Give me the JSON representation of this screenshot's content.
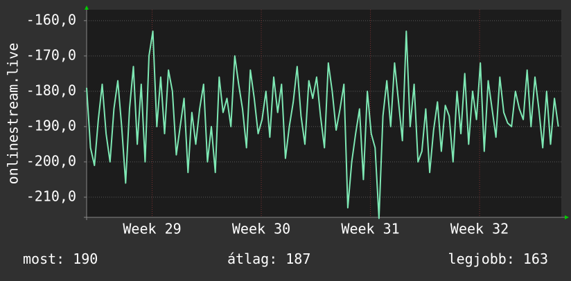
{
  "chart_data": {
    "type": "line",
    "y_label": "onlinestream.live",
    "color": "#7ee8b4",
    "xlim": [
      0,
      30.44
    ],
    "ylim": [
      -215.7,
      -156.9
    ],
    "yticks": [
      {
        "value": -160,
        "label": "-160,0"
      },
      {
        "value": -170,
        "label": "-170,0"
      },
      {
        "value": -180,
        "label": "-180,0"
      },
      {
        "value": -190,
        "label": "-190,0"
      },
      {
        "value": -200,
        "label": "-200,0"
      },
      {
        "value": -210,
        "label": "-210,0"
      }
    ],
    "xticks": [
      {
        "value": 4.2,
        "label": "Week 29"
      },
      {
        "value": 11.2,
        "label": "Week 30"
      },
      {
        "value": 18.2,
        "label": "Week 31"
      },
      {
        "value": 25.2,
        "label": "Week 32"
      }
    ],
    "grid": true,
    "x": [
      0,
      0.25,
      0.5,
      0.75,
      1,
      1.25,
      1.5,
      1.75,
      2,
      2.25,
      2.5,
      2.75,
      3,
      3.25,
      3.5,
      3.75,
      4,
      4.25,
      4.5,
      4.75,
      5,
      5.25,
      5.5,
      5.75,
      6,
      6.25,
      6.5,
      6.75,
      7,
      7.25,
      7.5,
      7.75,
      8,
      8.25,
      8.5,
      8.75,
      9,
      9.25,
      9.5,
      9.75,
      10,
      10.25,
      10.5,
      10.75,
      11,
      11.25,
      11.5,
      11.75,
      12,
      12.25,
      12.5,
      12.75,
      13,
      13.25,
      13.5,
      13.75,
      14,
      14.25,
      14.5,
      14.75,
      15,
      15.25,
      15.5,
      15.75,
      16,
      16.25,
      16.5,
      16.75,
      17,
      17.25,
      17.5,
      17.75,
      18,
      18.25,
      18.5,
      18.75,
      19,
      19.25,
      19.5,
      19.75,
      20,
      20.25,
      20.5,
      20.75,
      21,
      21.25,
      21.5,
      21.75,
      22,
      22.25,
      22.5,
      22.75,
      23,
      23.25,
      23.5,
      23.75,
      24,
      24.25,
      24.5,
      24.75,
      25,
      25.25,
      25.5,
      25.75,
      26,
      26.25,
      26.5,
      26.75,
      27,
      27.25,
      27.5,
      27.75,
      28,
      28.25,
      28.5,
      28.75,
      29,
      29.25,
      29.5,
      29.75,
      30,
      30.25
    ],
    "values": [
      -179,
      -196,
      -201,
      -188,
      -178,
      -192,
      -200,
      -185,
      -177,
      -190,
      -206,
      -185,
      -173,
      -195,
      -178,
      -200,
      -170,
      -163,
      -190,
      -176,
      -192,
      -174,
      -180,
      -198,
      -190,
      -182,
      -203,
      -186,
      -195,
      -185,
      -178,
      -200,
      -190,
      -203,
      -176,
      -186,
      -182,
      -190,
      -170,
      -178,
      -185,
      -196,
      -174,
      -182,
      -192,
      -188,
      -180,
      -193,
      -176,
      -186,
      -178,
      -199,
      -190,
      -183,
      -173,
      -187,
      -195,
      -177,
      -182,
      -176,
      -187,
      -196,
      -172,
      -180,
      -191,
      -185,
      -178,
      -213,
      -200,
      -192,
      -185,
      -205,
      -180,
      -192,
      -196,
      -216,
      -187,
      -177,
      -190,
      -172,
      -183,
      -194,
      -163,
      -190,
      -178,
      -200,
      -197,
      -185,
      -203,
      -191,
      -183,
      -197,
      -184,
      -187,
      -200,
      -180,
      -192,
      -175,
      -195,
      -180,
      -188,
      -172,
      -197,
      -177,
      -185,
      -193,
      -176,
      -186,
      -189,
      -190,
      -180,
      -185,
      -188,
      -174,
      -190,
      -176,
      -185,
      -196,
      -180,
      -195,
      -182,
      -190
    ],
    "stats": [
      {
        "label": "most:",
        "value": 190
      },
      {
        "label": "átlag:",
        "value": 187
      },
      {
        "label": "legjobb:",
        "value": 163
      }
    ]
  }
}
